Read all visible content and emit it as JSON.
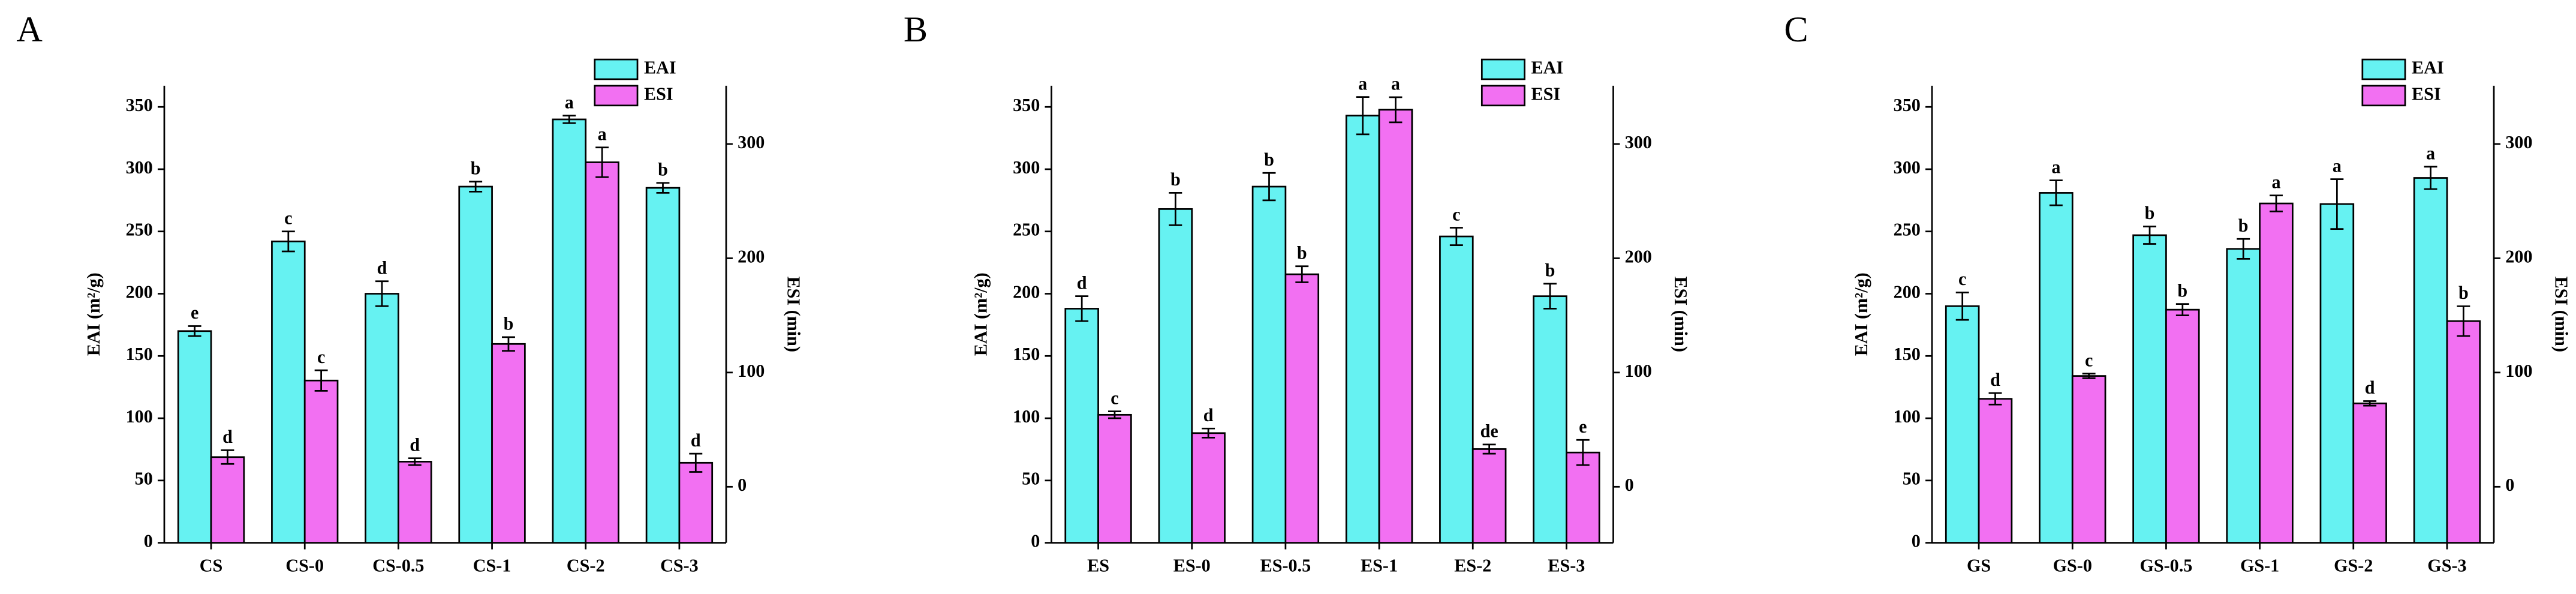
{
  "chart_data": [
    {
      "type": "bar",
      "panel": "A",
      "categories": [
        "CS",
        "CS-0",
        "CS-0.5",
        "CS-1",
        "CS-2",
        "CS-3"
      ],
      "y_label": "EAI (m²/g)",
      "y2_label": "ESI (min)",
      "ylim": [
        0,
        367
      ],
      "yticks": [
        0,
        50,
        100,
        150,
        200,
        250,
        300,
        350
      ],
      "y2lim": [
        -49,
        351
      ],
      "y2ticks": [
        0,
        100,
        200,
        300
      ],
      "legend": "upper right",
      "series": [
        {
          "name": "EAI",
          "color": "#66f2f2",
          "values": [
            170,
            242,
            200,
            286,
            340,
            285
          ],
          "errors": [
            4,
            8,
            10,
            4,
            3,
            4
          ],
          "letters": [
            "e",
            "c",
            "d",
            "b",
            "a",
            "b"
          ]
        },
        {
          "name": "ESI",
          "color": "#f270f2",
          "axis": "y2",
          "values": [
            26,
            93,
            22,
            125,
            284,
            21
          ],
          "errors": [
            6,
            9,
            3,
            6,
            13,
            8
          ],
          "letters": [
            "d",
            "c",
            "d",
            "b",
            "a",
            "d"
          ]
        }
      ]
    },
    {
      "type": "bar",
      "panel": "B",
      "categories": [
        "ES",
        "ES-0",
        "ES-0.5",
        "ES-1",
        "ES-2",
        "ES-3"
      ],
      "y_label": "EAI (m²/g)",
      "y2_label": "ESI (min)",
      "ylim": [
        0,
        367
      ],
      "yticks": [
        0,
        50,
        100,
        150,
        200,
        250,
        300,
        350
      ],
      "y2lim": [
        -49,
        351
      ],
      "y2ticks": [
        0,
        100,
        200,
        300
      ],
      "legend": "upper right",
      "series": [
        {
          "name": "EAI",
          "color": "#66f2f2",
          "values": [
            188,
            268,
            286,
            343,
            246,
            198
          ],
          "errors": [
            10,
            13,
            11,
            15,
            7,
            10
          ],
          "letters": [
            "d",
            "b",
            "b",
            "a",
            "c",
            "b"
          ]
        },
        {
          "name": "ESI",
          "color": "#f270f2",
          "axis": "y2",
          "values": [
            63,
            47,
            186,
            330,
            33,
            30
          ],
          "errors": [
            3,
            4,
            7,
            11,
            4,
            11
          ],
          "letters": [
            "c",
            "d",
            "b",
            "a",
            "de",
            "e"
          ]
        }
      ]
    },
    {
      "type": "bar",
      "panel": "C",
      "categories": [
        "GS",
        "GS-0",
        "GS-0.5",
        "GS-1",
        "GS-2",
        "GS-3"
      ],
      "y_label": "EAI (m²/g)",
      "y2_label": "ESI (min)",
      "ylim": [
        0,
        367
      ],
      "yticks": [
        0,
        50,
        100,
        150,
        200,
        250,
        300,
        350
      ],
      "y2lim": [
        -49,
        351
      ],
      "y2ticks": [
        0,
        100,
        200,
        300
      ],
      "legend": "upper right",
      "series": [
        {
          "name": "EAI",
          "color": "#66f2f2",
          "values": [
            190,
            281,
            247,
            236,
            272,
            293
          ],
          "errors": [
            11,
            10,
            7,
            8,
            20,
            9
          ],
          "letters": [
            "c",
            "a",
            "b",
            "b",
            "a",
            "a"
          ]
        },
        {
          "name": "ESI",
          "color": "#f270f2",
          "axis": "y2",
          "values": [
            77,
            97,
            155,
            248,
            73,
            145
          ],
          "errors": [
            5,
            2,
            5,
            7,
            2,
            13
          ],
          "letters": [
            "d",
            "c",
            "b",
            "a",
            "d",
            "b"
          ]
        }
      ]
    }
  ]
}
